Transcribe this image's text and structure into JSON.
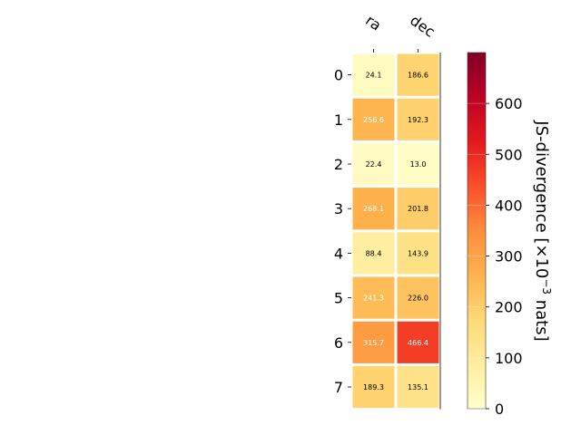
{
  "chart_data": {
    "type": "heatmap",
    "title": "",
    "xlabel": "",
    "ylabel": "",
    "columns": [
      "ra",
      "dec"
    ],
    "rows": [
      "0",
      "1",
      "2",
      "3",
      "4",
      "5",
      "6",
      "7"
    ],
    "values": [
      [
        24.1,
        186.6
      ],
      [
        256.6,
        192.3
      ],
      [
        22.4,
        13.0
      ],
      [
        268.1,
        201.8
      ],
      [
        88.4,
        143.9
      ],
      [
        241.3,
        226.0
      ],
      [
        315.7,
        466.4
      ],
      [
        189.3,
        135.1
      ]
    ],
    "cell_labels": [
      [
        "24.1",
        "186.6"
      ],
      [
        "256.6",
        "192.3"
      ],
      [
        "22.4",
        "13.0"
      ],
      [
        "268.1",
        "201.8"
      ],
      [
        "88.4",
        "143.9"
      ],
      [
        "241.3",
        "226.0"
      ],
      [
        "315.7",
        "466.4"
      ],
      [
        "189.3",
        "135.1"
      ]
    ],
    "colormap": "YlOrRd",
    "vmin": 0,
    "vmax": 700,
    "colorbar": {
      "label": "JS-divergence [×10",
      "label_exponent": "−3",
      "label_suffix": " nats]",
      "ticks": [
        "0",
        "100",
        "200",
        "300",
        "400",
        "500",
        "600"
      ],
      "tick_values": [
        0,
        100,
        200,
        300,
        400,
        500,
        600
      ]
    }
  }
}
